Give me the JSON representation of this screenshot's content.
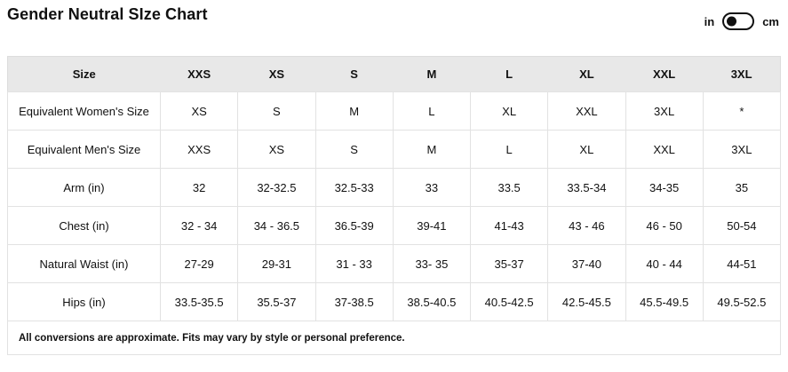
{
  "page": {
    "title": "Gender Neutral SIze Chart"
  },
  "unit_toggle": {
    "left_label": "in",
    "right_label": "cm",
    "selected": "in"
  },
  "table": {
    "columns": [
      "Size",
      "XXS",
      "XS",
      "S",
      "M",
      "L",
      "XL",
      "XXL",
      "3XL"
    ],
    "rows": [
      {
        "label": "Equivalent Women's Size",
        "values": [
          "XS",
          "S",
          "M",
          "L",
          "XL",
          "XXL",
          "3XL",
          "*"
        ]
      },
      {
        "label": "Equivalent Men's Size",
        "values": [
          "XXS",
          "XS",
          "S",
          "M",
          "L",
          "XL",
          "XXL",
          "3XL"
        ]
      },
      {
        "label": "Arm (in)",
        "values": [
          "32",
          "32-32.5",
          "32.5-33",
          "33",
          "33.5",
          "33.5-34",
          "34-35",
          "35"
        ]
      },
      {
        "label": "Chest (in)",
        "values": [
          "32 - 34",
          "34 - 36.5",
          "36.5-39",
          "39-41",
          "41-43",
          "43 - 46",
          "46 - 50",
          "50-54"
        ]
      },
      {
        "label": "Natural Waist (in)",
        "values": [
          "27-29",
          "29-31",
          "31 - 33",
          "33- 35",
          "35-37",
          "37-40",
          "40 - 44",
          "44-51"
        ]
      },
      {
        "label": "Hips (in)",
        "values": [
          "33.5-35.5",
          "35.5-37",
          "37-38.5",
          "38.5-40.5",
          "40.5-42.5",
          "42.5-45.5",
          "45.5-49.5",
          "49.5-52.5"
        ]
      }
    ],
    "footnote": "All conversions are approximate. Fits may vary by style or personal preference."
  },
  "colors": {
    "header_bg": "#e8e8e8",
    "border": "#e2e2e2",
    "text": "#111111",
    "toggle": "#111111"
  }
}
